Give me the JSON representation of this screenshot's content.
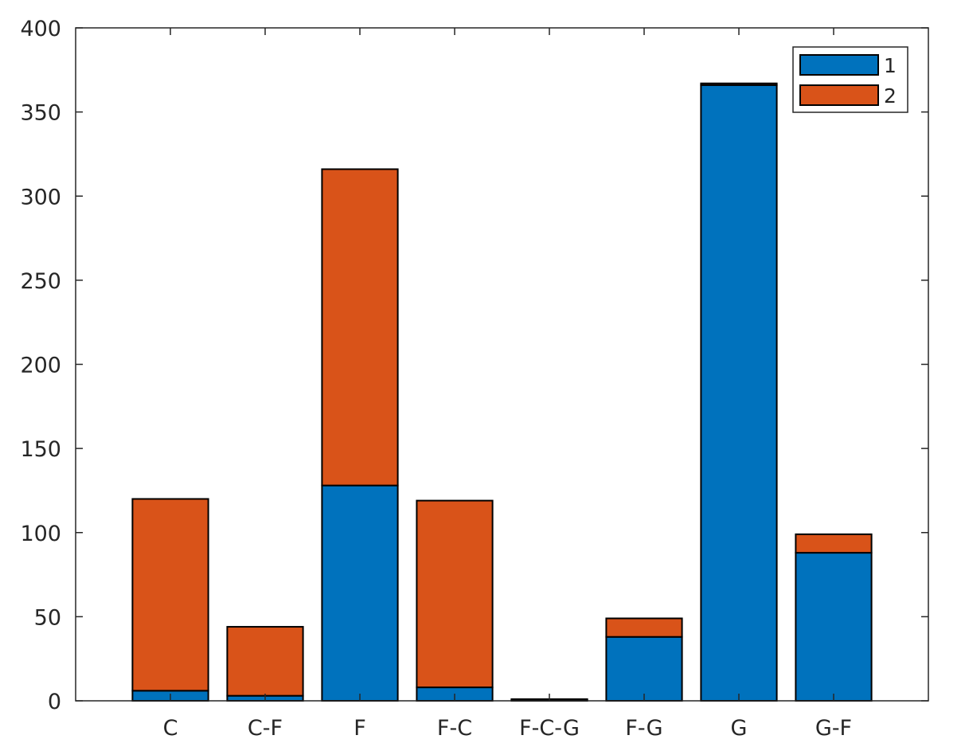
{
  "chart_data": {
    "type": "bar",
    "stacked": true,
    "categories": [
      "C",
      "C-F",
      "F",
      "F-C",
      "F-C-G",
      "F-G",
      "G",
      "G-F"
    ],
    "series": [
      {
        "name": "1",
        "color": "#0072BD",
        "values": [
          6,
          3,
          128,
          8,
          0.5,
          38,
          366,
          88
        ]
      },
      {
        "name": "2",
        "color": "#D95319",
        "values": [
          114,
          41,
          188,
          111,
          0.5,
          11,
          1,
          11
        ]
      }
    ],
    "yticks": [
      0,
      50,
      100,
      150,
      200,
      250,
      300,
      350,
      400
    ],
    "ylim": [
      0,
      400
    ],
    "xlim": [
      0,
      9
    ],
    "grid": false,
    "legend_position": "top-right"
  }
}
